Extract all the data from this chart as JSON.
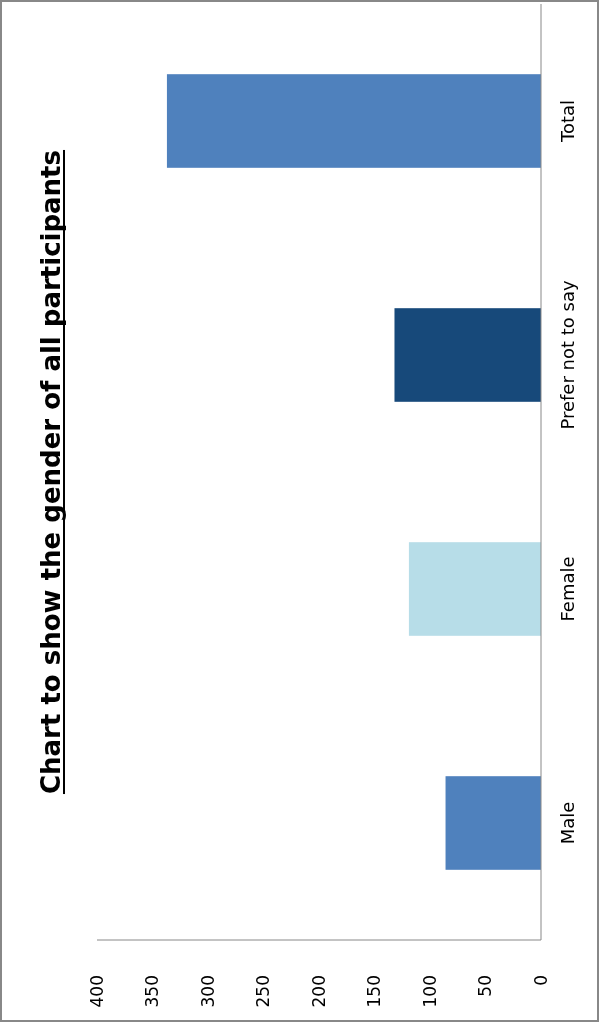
{
  "chart_data": {
    "type": "bar",
    "orientation": "horizontal",
    "title": "Chart to show the gender of all participants",
    "categories": [
      "Total",
      "Prefer not to say",
      "Female",
      "Male"
    ],
    "values": [
      337,
      132,
      119,
      86
    ],
    "colors": [
      "#4f81bd",
      "#17497a",
      "#b7dde8",
      "#4f81bd"
    ],
    "xlim": [
      400,
      0
    ],
    "xticks": [
      400,
      350,
      300,
      250,
      200,
      150,
      100,
      50,
      0
    ]
  }
}
